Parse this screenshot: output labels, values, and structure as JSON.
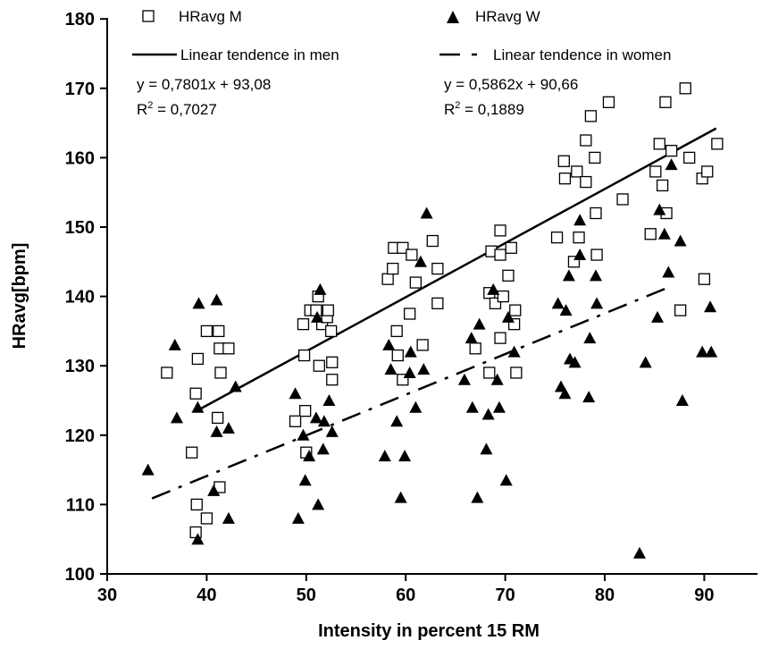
{
  "chart_data": {
    "type": "scatter",
    "xlabel": "Intensity in percent 15 RM",
    "ylabel": "HRavg[bpm]",
    "xlim": [
      30,
      95
    ],
    "ylim": [
      100,
      180
    ],
    "xticks": [
      30,
      40,
      50,
      60,
      70,
      80,
      90
    ],
    "yticks": [
      100,
      110,
      120,
      130,
      140,
      150,
      160,
      170,
      180
    ],
    "grid": false,
    "legend": {
      "placement": "top",
      "series_m": "HRavg M",
      "series_w": "HRavg W",
      "trend_m": "Linear tendence in men",
      "trend_w": "Linear tendence in women"
    },
    "annotations": {
      "men_eq": "y = 0,7801x + 93,08",
      "men_r2_prefix": "R",
      "men_r2_value": " = 0,7027",
      "women_eq": "y = 0,5862x + 90,66",
      "women_r2_prefix": "R",
      "women_r2_value": " = 0,1889",
      "superscript": "2"
    },
    "series": [
      {
        "name": "HRavg M",
        "marker": "open-square",
        "color": "#000000",
        "points": [
          [
            36,
            129
          ],
          [
            38.5,
            117.5
          ],
          [
            38.9,
            126
          ],
          [
            39.1,
            131
          ],
          [
            39,
            110
          ],
          [
            38.9,
            106
          ],
          [
            40,
            135
          ],
          [
            40,
            108
          ],
          [
            41.2,
            135
          ],
          [
            41.3,
            132.5
          ],
          [
            41.1,
            122.5
          ],
          [
            41.4,
            129
          ],
          [
            41.3,
            112.5
          ],
          [
            42.2,
            132.5
          ],
          [
            49.8,
            131.5
          ],
          [
            49.9,
            123.5
          ],
          [
            50,
            117.5
          ],
          [
            49.7,
            136
          ],
          [
            50.4,
            138
          ],
          [
            51.2,
            140
          ],
          [
            51,
            138
          ],
          [
            51.3,
            130
          ],
          [
            51.6,
            136
          ],
          [
            52.1,
            137
          ],
          [
            52.2,
            138
          ],
          [
            52.5,
            135
          ],
          [
            52.6,
            130.5
          ],
          [
            52.6,
            128
          ],
          [
            48.9,
            122
          ],
          [
            58.2,
            142.5
          ],
          [
            58.8,
            147
          ],
          [
            58.7,
            144
          ],
          [
            59.1,
            135
          ],
          [
            59.2,
            131.5
          ],
          [
            59.7,
            147
          ],
          [
            59.7,
            128
          ],
          [
            60.4,
            137.5
          ],
          [
            60.6,
            146
          ],
          [
            61,
            142
          ],
          [
            61.7,
            133
          ],
          [
            62.7,
            148
          ],
          [
            63.2,
            144
          ],
          [
            63.2,
            139
          ],
          [
            67,
            132.5
          ],
          [
            68.6,
            146.5
          ],
          [
            68.4,
            140.5
          ],
          [
            68.4,
            129
          ],
          [
            69,
            139
          ],
          [
            69.5,
            149.5
          ],
          [
            69.5,
            146
          ],
          [
            69.5,
            134
          ],
          [
            69.8,
            140
          ],
          [
            70.3,
            143
          ],
          [
            70.6,
            147
          ],
          [
            71,
            138
          ],
          [
            70.9,
            136
          ],
          [
            71.1,
            129
          ],
          [
            75.2,
            148.5
          ],
          [
            75.9,
            159.5
          ],
          [
            76,
            157
          ],
          [
            76.9,
            145
          ],
          [
            77.2,
            158
          ],
          [
            77.4,
            148.5
          ],
          [
            78.1,
            162.5
          ],
          [
            78.1,
            156.5
          ],
          [
            78.6,
            166
          ],
          [
            79,
            160
          ],
          [
            79.1,
            152
          ],
          [
            79.2,
            146
          ],
          [
            80.4,
            168
          ],
          [
            81.8,
            154
          ],
          [
            84.6,
            149
          ],
          [
            85.1,
            158
          ],
          [
            85.5,
            162
          ],
          [
            85.8,
            156
          ],
          [
            86.1,
            168
          ],
          [
            86.2,
            152
          ],
          [
            86.7,
            161
          ],
          [
            87.6,
            138
          ],
          [
            88.1,
            170
          ],
          [
            88.5,
            160
          ],
          [
            89.8,
            157
          ],
          [
            90,
            142.5
          ],
          [
            90.3,
            158
          ],
          [
            91.3,
            162
          ]
        ]
      },
      {
        "name": "HRavg W",
        "marker": "filled-triangle",
        "color": "#000000",
        "points": [
          [
            34.1,
            115
          ],
          [
            36.8,
            133
          ],
          [
            37,
            122.5
          ],
          [
            39.2,
            139
          ],
          [
            39.1,
            124
          ],
          [
            39.1,
            105
          ],
          [
            40.7,
            112
          ],
          [
            41,
            139.5
          ],
          [
            41,
            120.5
          ],
          [
            42.2,
            121
          ],
          [
            42.2,
            108
          ],
          [
            42.9,
            127
          ],
          [
            48.9,
            126
          ],
          [
            49.2,
            108
          ],
          [
            49.7,
            120
          ],
          [
            49.9,
            113.5
          ],
          [
            50.3,
            117
          ],
          [
            51,
            122.5
          ],
          [
            51.4,
            141
          ],
          [
            51.1,
            137
          ],
          [
            51.2,
            110
          ],
          [
            51.7,
            118
          ],
          [
            51.8,
            122
          ],
          [
            52.3,
            125
          ],
          [
            52.6,
            120.5
          ],
          [
            57.9,
            117
          ],
          [
            58.3,
            133
          ],
          [
            58.5,
            129.5
          ],
          [
            59.1,
            122
          ],
          [
            59.5,
            111
          ],
          [
            59.9,
            117
          ],
          [
            60.4,
            129
          ],
          [
            60.5,
            132
          ],
          [
            61,
            124
          ],
          [
            61.5,
            145
          ],
          [
            61.8,
            129.5
          ],
          [
            62.1,
            152
          ],
          [
            65.9,
            128
          ],
          [
            66.6,
            134
          ],
          [
            66.7,
            124
          ],
          [
            67.2,
            111
          ],
          [
            67.4,
            136
          ],
          [
            68.1,
            118
          ],
          [
            68.3,
            123
          ],
          [
            68.8,
            141
          ],
          [
            69.2,
            128
          ],
          [
            69.4,
            124
          ],
          [
            70.1,
            113.5
          ],
          [
            70.3,
            137
          ],
          [
            70.9,
            132
          ],
          [
            75.3,
            139
          ],
          [
            75.6,
            127
          ],
          [
            76,
            126
          ],
          [
            76.1,
            138
          ],
          [
            76.4,
            143
          ],
          [
            76.5,
            131
          ],
          [
            77,
            130.5
          ],
          [
            77.5,
            151
          ],
          [
            77.5,
            146
          ],
          [
            78.5,
            134
          ],
          [
            78.4,
            125.5
          ],
          [
            79.1,
            143
          ],
          [
            79.2,
            139
          ],
          [
            83.5,
            103
          ],
          [
            84.1,
            130.5
          ],
          [
            85.3,
            137
          ],
          [
            85.5,
            152.5
          ],
          [
            86,
            149
          ],
          [
            86.4,
            143.5
          ],
          [
            86.7,
            159
          ],
          [
            87.6,
            148
          ],
          [
            87.8,
            125
          ],
          [
            89.8,
            132
          ],
          [
            90.6,
            138.5
          ],
          [
            90.7,
            132
          ]
        ]
      }
    ],
    "trendlines": [
      {
        "name": "Linear tendence in men",
        "style": "solid",
        "slope": 0.7801,
        "intercept": 93.08,
        "x_range": [
          39.2,
          91.2
        ]
      },
      {
        "name": "Linear tendence in women",
        "style": "dash-dot",
        "slope": 0.5862,
        "intercept": 90.66,
        "x_range": [
          34.5,
          86.5
        ]
      }
    ]
  }
}
